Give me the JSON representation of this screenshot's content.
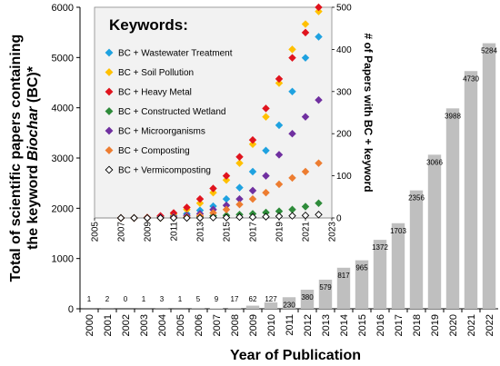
{
  "chart_data": [
    {
      "type": "bar",
      "ylabel_line1": "Total of scientific papers containing",
      "ylabel_line2_prefix": "the keyword ",
      "ylabel_line2_italic": "Biochar",
      "ylabel_line2_suffix": " (BC)*",
      "xlabel": "Year of Publication",
      "ylim": [
        0,
        6000
      ],
      "yticks": [
        "0",
        "1000",
        "2000",
        "3000",
        "4000",
        "5000",
        "6000"
      ],
      "categories": [
        "2000",
        "2001",
        "2002",
        "2003",
        "2004",
        "2005",
        "2006",
        "2007",
        "2008",
        "2009",
        "2010",
        "2011",
        "2012",
        "2013",
        "2014",
        "2015",
        "2016",
        "2017",
        "2018",
        "2019",
        "2020",
        "2021",
        "2022"
      ],
      "values": [
        1,
        2,
        0,
        1,
        3,
        1,
        5,
        9,
        17,
        62,
        127,
        230,
        380,
        579,
        817,
        965,
        1372,
        1703,
        2356,
        3066,
        3988,
        4730,
        5284
      ],
      "bar_color": "#bfbfbf"
    },
    {
      "type": "scatter",
      "legend_title": "Keywords:",
      "ylabel": "# of Papers with BC + keyword",
      "xlim": [
        2005,
        2023
      ],
      "ylim": [
        0,
        500
      ],
      "xticks": [
        "2005",
        "2007",
        "2009",
        "2011",
        "2013",
        "2015",
        "2017",
        "2019",
        "2021",
        "2023"
      ],
      "yticks": [
        "0",
        "100",
        "200",
        "300",
        "400",
        "500"
      ],
      "x": [
        2007,
        2008,
        2009,
        2010,
        2011,
        2012,
        2013,
        2014,
        2015,
        2016,
        2017,
        2018,
        2019,
        2020,
        2021,
        2022
      ],
      "series": [
        {
          "name": "BC + Wastewater Treatment",
          "color": "#1fa2e0",
          "fill": true,
          "values": [
            0,
            0,
            0,
            3,
            6,
            10,
            18,
            28,
            45,
            72,
            110,
            160,
            220,
            300,
            380,
            430
          ]
        },
        {
          "name": "BC + Soil Pollution",
          "color": "#ffc000",
          "fill": true,
          "values": [
            0,
            0,
            1,
            4,
            9,
            20,
            35,
            60,
            90,
            130,
            175,
            240,
            320,
            400,
            460,
            490
          ]
        },
        {
          "name": "BC + Heavy Metal",
          "color": "#e0141e",
          "fill": true,
          "values": [
            0,
            0,
            1,
            5,
            12,
            25,
            45,
            70,
            100,
            145,
            185,
            260,
            330,
            380,
            440,
            500
          ]
        },
        {
          "name": "BC + Constructed Wetland",
          "color": "#2e8b3a",
          "fill": true,
          "values": [
            0,
            0,
            0,
            0,
            1,
            2,
            3,
            5,
            6,
            8,
            10,
            13,
            16,
            20,
            27,
            35
          ]
        },
        {
          "name": "BC + Microorganisms",
          "color": "#7030a0",
          "fill": true,
          "values": [
            0,
            0,
            0,
            1,
            3,
            6,
            10,
            20,
            30,
            45,
            65,
            100,
            150,
            200,
            240,
            280
          ]
        },
        {
          "name": "BC + Composting",
          "color": "#ed7d31",
          "fill": true,
          "values": [
            0,
            0,
            0,
            0,
            1,
            2,
            5,
            12,
            20,
            32,
            45,
            60,
            80,
            95,
            110,
            130
          ]
        },
        {
          "name": "BC + Vermicomposting",
          "color": "#000000",
          "fill": false,
          "values": [
            0,
            0,
            0,
            0,
            0,
            0,
            0,
            1,
            1,
            2,
            2,
            3,
            4,
            5,
            6,
            8
          ]
        }
      ]
    }
  ]
}
